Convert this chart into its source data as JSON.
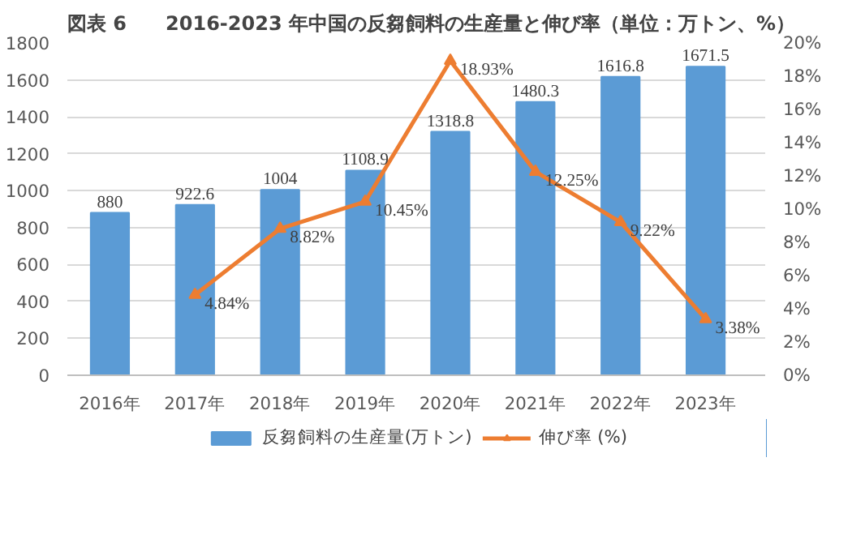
{
  "chart_data": {
    "type": "bar",
    "title": "図表 6　　2016-2023 年中国の反芻飼料の生産量と伸び率（単位：万トン、%）",
    "categories": [
      "2016年",
      "2017年",
      "2018年",
      "2019年",
      "2020年",
      "2021年",
      "2022年",
      "2023年"
    ],
    "series": [
      {
        "name": "反芻飼料の生産量(万トン)",
        "color": "#5b9bd5",
        "values": [
          880,
          922.6,
          1004,
          1108.9,
          1318.8,
          1480.3,
          1616.8,
          1671.5
        ],
        "value_labels": [
          "880",
          "922.6",
          "1004",
          "1108.9",
          "1318.8",
          "1480.3",
          "1616.8",
          "1671.5"
        ]
      },
      {
        "name": "伸び率 (%)",
        "type": "line",
        "axis": "y2",
        "color": "#ed7d31",
        "marker": "triangle",
        "values": [
          null,
          4.84,
          8.82,
          10.45,
          18.93,
          12.25,
          9.22,
          3.38
        ],
        "value_labels": [
          null,
          "4.84%",
          "8.82%",
          "10.45%",
          "18.93%",
          "12.25%",
          "9.22%",
          "3.38%"
        ]
      }
    ],
    "ylim": [
      0,
      1800
    ],
    "yticks": [
      0,
      200,
      400,
      600,
      800,
      1000,
      1200,
      1400,
      1600,
      1800
    ],
    "y2lim": [
      0,
      20
    ],
    "y2ticks": [
      {
        "value": 0,
        "label": "0%"
      },
      {
        "value": 2,
        "label": "2%"
      },
      {
        "value": 4,
        "label": "4%"
      },
      {
        "value": 6,
        "label": "6%"
      },
      {
        "value": 8,
        "label": "8%"
      },
      {
        "value": 10,
        "label": "10%"
      },
      {
        "value": 12,
        "label": "12%"
      },
      {
        "value": 14,
        "label": "14%"
      },
      {
        "value": 16,
        "label": "16%"
      },
      {
        "value": 18,
        "label": "18%"
      },
      {
        "value": 20,
        "label": "20%"
      }
    ],
    "grid": "y",
    "legend": "bottom"
  }
}
